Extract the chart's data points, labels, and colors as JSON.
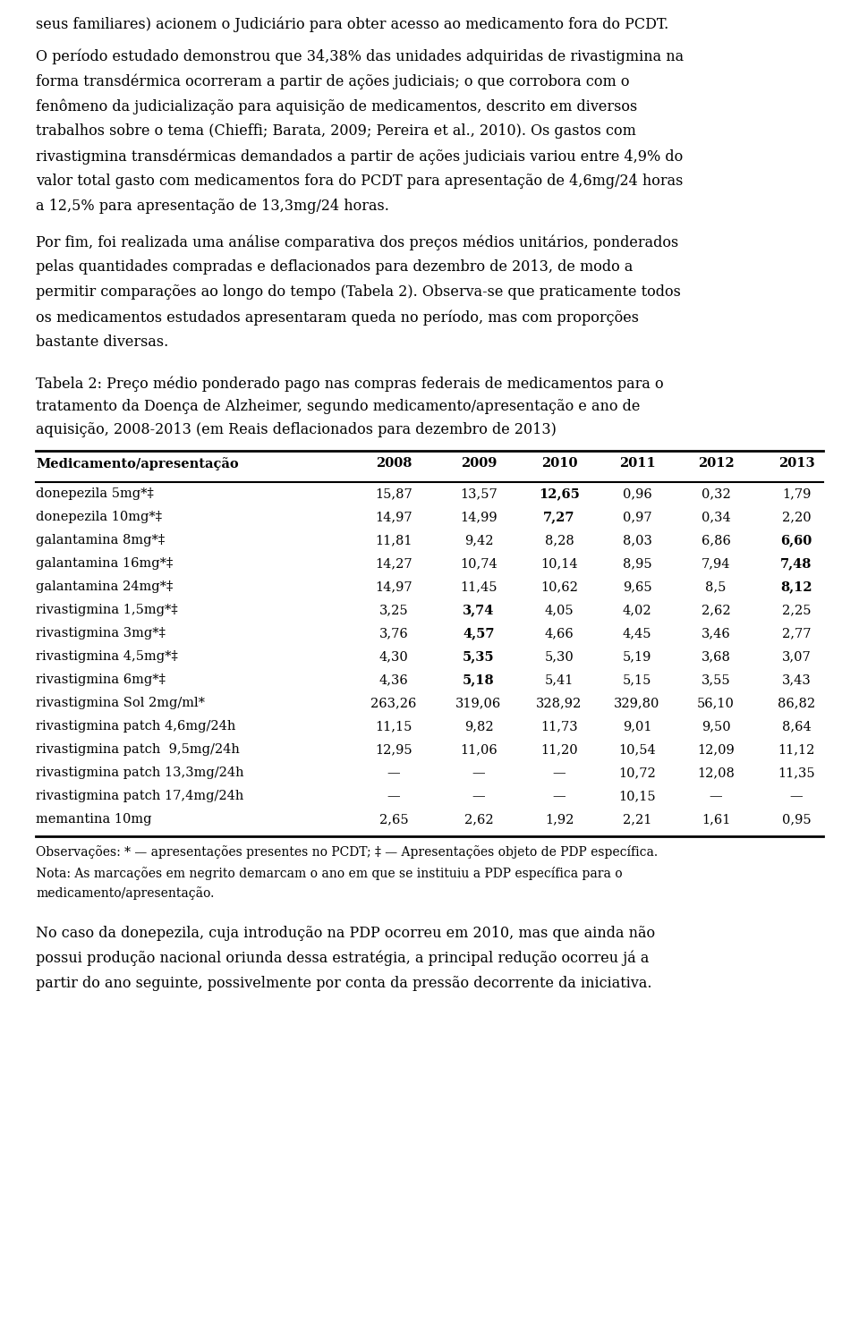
{
  "p1": "seus familiares) acionem o Judiciário para obter acesso ao medicamento fora do PCDT.",
  "p2_lines": [
    "O período estudado demonstrou que 34,38% das unidades adquiridas de rivastigmina na",
    "forma transdérmica ocorreram a partir de ações judiciais; o que corrobora com o",
    "fenômeno da judicialização para aquisição de medicamentos, descrito em diversos",
    "trabalhos sobre o tema (Chieffi; Barata, 2009; Pereira et al., 2010). Os gastos com",
    "rivastigmina transdérmicas demandados a partir de ações judiciais variou entre 4,9% do",
    "valor total gasto com medicamentos fora do PCDT para apresentação de 4,6mg/24 horas",
    "a 12,5% para apresentação de 13,3mg/24 horas."
  ],
  "p3_lines": [
    "Por fim, foi realizada uma análise comparativa dos preços médios unitários, ponderados",
    "pelas quantidades compradas e deflacionados para dezembro de 2013, de modo a",
    "permitir comparações ao longo do tempo (Tabela 2). Observa-se que praticamente todos",
    "os medicamentos estudados apresentaram queda no período, mas com proporções",
    "bastante diversas."
  ],
  "caption_lines": [
    "Tabela 2: Preço médio ponderado pago nas compras federais de medicamentos para o",
    "tratamento da Doença de Alzheimer, segundo medicamento/apresentação e ano de",
    "aquisição, 2008-2013 (em Reais deflacionados para dezembro de 2013)"
  ],
  "table_headers": [
    "Medicamento/apresentação",
    "2008",
    "2009",
    "2010",
    "2011",
    "2012",
    "2013"
  ],
  "table_rows": [
    {
      "name": "donepezila 5mg*‡",
      "values": [
        "15,87",
        "13,57",
        "12,65",
        "0,96",
        "0,32",
        "1,79"
      ],
      "bold_col": 2
    },
    {
      "name": "donepezila 10mg*‡",
      "values": [
        "14,97",
        "14,99",
        "7,27",
        "0,97",
        "0,34",
        "2,20"
      ],
      "bold_col": 2
    },
    {
      "name": "galantamina 8mg*‡",
      "values": [
        "11,81",
        "9,42",
        "8,28",
        "8,03",
        "6,86",
        "6,60"
      ],
      "bold_col": 5
    },
    {
      "name": "galantamina 16mg*‡",
      "values": [
        "14,27",
        "10,74",
        "10,14",
        "8,95",
        "7,94",
        "7,48"
      ],
      "bold_col": 5
    },
    {
      "name": "galantamina 24mg*‡",
      "values": [
        "14,97",
        "11,45",
        "10,62",
        "9,65",
        "8,5",
        "8,12"
      ],
      "bold_col": 5
    },
    {
      "name": "rivastigmina 1,5mg*‡",
      "values": [
        "3,25",
        "3,74",
        "4,05",
        "4,02",
        "2,62",
        "2,25"
      ],
      "bold_col": 1
    },
    {
      "name": "rivastigmina 3mg*‡",
      "values": [
        "3,76",
        "4,57",
        "4,66",
        "4,45",
        "3,46",
        "2,77"
      ],
      "bold_col": 1
    },
    {
      "name": "rivastigmina 4,5mg*‡",
      "values": [
        "4,30",
        "5,35",
        "5,30",
        "5,19",
        "3,68",
        "3,07"
      ],
      "bold_col": 1
    },
    {
      "name": "rivastigmina 6mg*‡",
      "values": [
        "4,36",
        "5,18",
        "5,41",
        "5,15",
        "3,55",
        "3,43"
      ],
      "bold_col": 1
    },
    {
      "name": "rivastigmina Sol 2mg/ml*",
      "values": [
        "263,26",
        "319,06",
        "328,92",
        "329,80",
        "56,10",
        "86,82"
      ],
      "bold_col": -1
    },
    {
      "name": "rivastigmina patch 4,6mg/24h",
      "values": [
        "11,15",
        "9,82",
        "11,73",
        "9,01",
        "9,50",
        "8,64"
      ],
      "bold_col": -1
    },
    {
      "name": "rivastigmina patch  9,5mg/24h",
      "values": [
        "12,95",
        "11,06",
        "11,20",
        "10,54",
        "12,09",
        "11,12"
      ],
      "bold_col": -1
    },
    {
      "name": "rivastigmina patch 13,3mg/24h",
      "values": [
        "—",
        "—",
        "—",
        "10,72",
        "12,08",
        "11,35"
      ],
      "bold_col": -1
    },
    {
      "name": "rivastigmina patch 17,4mg/24h",
      "values": [
        "—",
        "—",
        "—",
        "10,15",
        "—",
        "—"
      ],
      "bold_col": -1
    },
    {
      "name": "memantina 10mg",
      "values": [
        "2,65",
        "2,62",
        "1,92",
        "2,21",
        "1,61",
        "0,95"
      ],
      "bold_col": -1
    }
  ],
  "footnote1": "Observações: * — apresentações presentes no PCDT; ‡ — Apresentações objeto de PDP específica.",
  "footnote2_lines": [
    "Nota: As marcações em negrito demarcam o ano em que se instituiu a PDP específica para o",
    "medicamento/apresentação."
  ],
  "fp_lines": [
    "No caso da donepezila, cuja introdução na PDP ocorreu em 2010, mas que ainda não",
    "possui produção nacional oriunda dessa estratégia, a principal redução ocorreu já a",
    "partir do ano seguinte, possivelmente por conta da pressão decorrente da iniciativa."
  ],
  "bg_color": "#ffffff",
  "text_color": "#000000"
}
